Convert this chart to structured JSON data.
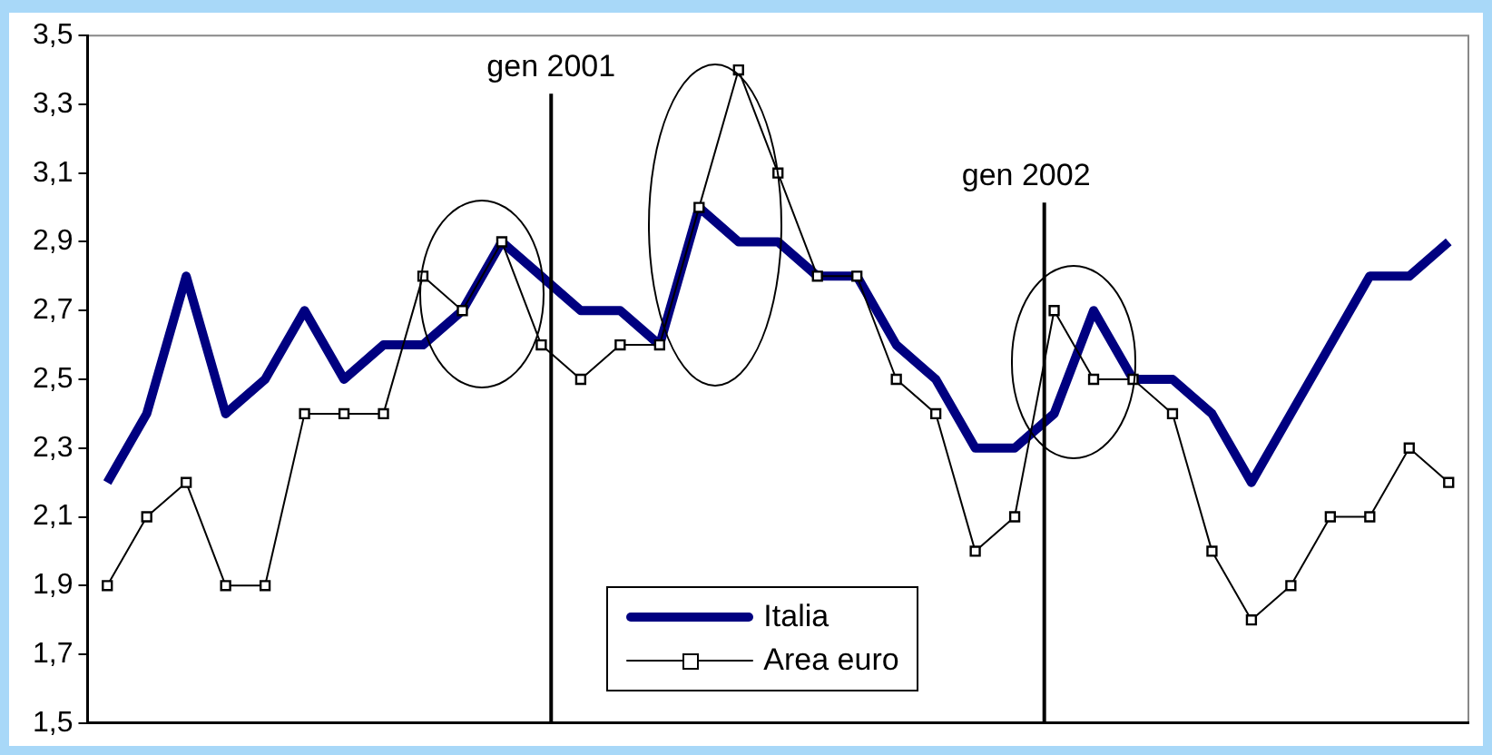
{
  "chart_data": {
    "type": "line",
    "categories": [
      null,
      null,
      null,
      null,
      null,
      null,
      null,
      null,
      null,
      null,
      null,
      null,
      null,
      null,
      null,
      null,
      null,
      null,
      null,
      null,
      null,
      null,
      null,
      null,
      null,
      null,
      null,
      null,
      null,
      null,
      null,
      null,
      null,
      null,
      null
    ],
    "series": [
      {
        "name": "Italia",
        "color": "#000080",
        "marker": "none",
        "values": [
          2.2,
          2.4,
          2.8,
          2.4,
          2.5,
          2.7,
          2.5,
          2.6,
          2.6,
          2.7,
          2.9,
          2.8,
          2.7,
          2.7,
          2.6,
          3.0,
          2.9,
          2.9,
          2.8,
          2.8,
          2.6,
          2.5,
          2.3,
          2.3,
          2.4,
          2.7,
          2.5,
          2.5,
          2.4,
          2.2,
          2.4,
          2.6,
          2.8,
          2.8,
          2.9
        ]
      },
      {
        "name": "Area euro",
        "color": "#000000",
        "marker": "square",
        "values": [
          1.9,
          2.1,
          2.2,
          1.9,
          1.9,
          2.4,
          2.4,
          2.4,
          2.8,
          2.7,
          2.9,
          2.6,
          2.5,
          2.6,
          2.6,
          3.0,
          3.4,
          3.1,
          2.8,
          2.8,
          2.5,
          2.4,
          2.0,
          2.1,
          2.7,
          2.5,
          2.5,
          2.4,
          2.0,
          1.8,
          1.9,
          2.1,
          2.1,
          2.3,
          2.2
        ]
      }
    ],
    "ylim": [
      1.5,
      3.5
    ],
    "yticks": [
      {
        "value": 1.5,
        "label": "1,5"
      },
      {
        "value": 1.7,
        "label": "1,7"
      },
      {
        "value": 1.9,
        "label": "1,9"
      },
      {
        "value": 2.1,
        "label": "2,1"
      },
      {
        "value": 2.3,
        "label": "2,3"
      },
      {
        "value": 2.5,
        "label": "2,5"
      },
      {
        "value": 2.7,
        "label": "2,7"
      },
      {
        "value": 2.9,
        "label": "2,9"
      },
      {
        "value": 3.1,
        "label": "3,1"
      },
      {
        "value": 3.3,
        "label": "3,3"
      },
      {
        "value": 3.5,
        "label": "3,5"
      }
    ],
    "annotations": [
      "gen 2001",
      "gen 2002"
    ],
    "grid": false,
    "legend": "bottom",
    "tick_labels": "y"
  }
}
